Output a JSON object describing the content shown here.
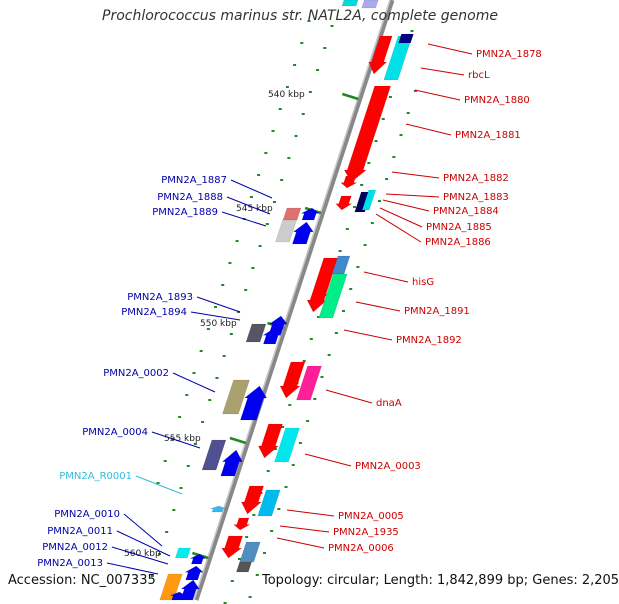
{
  "header": {
    "title": "Prochlorococcus marinus str. NATL2A, complete genome"
  },
  "footer": {
    "accession": "Accession: NC_007335",
    "summary": "Topology: circular; Length: 1,842,899 bp; Genes: 2,205"
  },
  "colors": {
    "backbone": "#808080",
    "right_label": "#cc0000",
    "left_label": "#0000aa",
    "rna_label": "#33bbdd",
    "tick": "#228822"
  },
  "scale_labels": [
    "540 kbp",
    "545 kbp",
    "550 kbp",
    "555 kbp",
    "560 kbp"
  ],
  "right_labels": [
    "PMN2A_1878",
    "rbcL",
    "PMN2A_1880",
    "PMN2A_1881",
    "PMN2A_1882",
    "PMN2A_1883",
    "PMN2A_1884",
    "PMN2A_1885",
    "PMN2A_1886",
    "hisG",
    "PMN2A_1891",
    "PMN2A_1892",
    "dnaA",
    "PMN2A_0003",
    "PMN2A_0005",
    "PMN2A_1935",
    "PMN2A_0006"
  ],
  "left_labels": [
    "PMN2A_1887",
    "PMN2A_1888",
    "PMN2A_1889",
    "PMN2A_1893",
    "PMN2A_1894",
    "PMN2A_0002",
    "PMN2A_0004",
    "PMN2A_R0001",
    "PMN2A_0010",
    "PMN2A_0011",
    "PMN2A_0012",
    "PMN2A_0013"
  ]
}
